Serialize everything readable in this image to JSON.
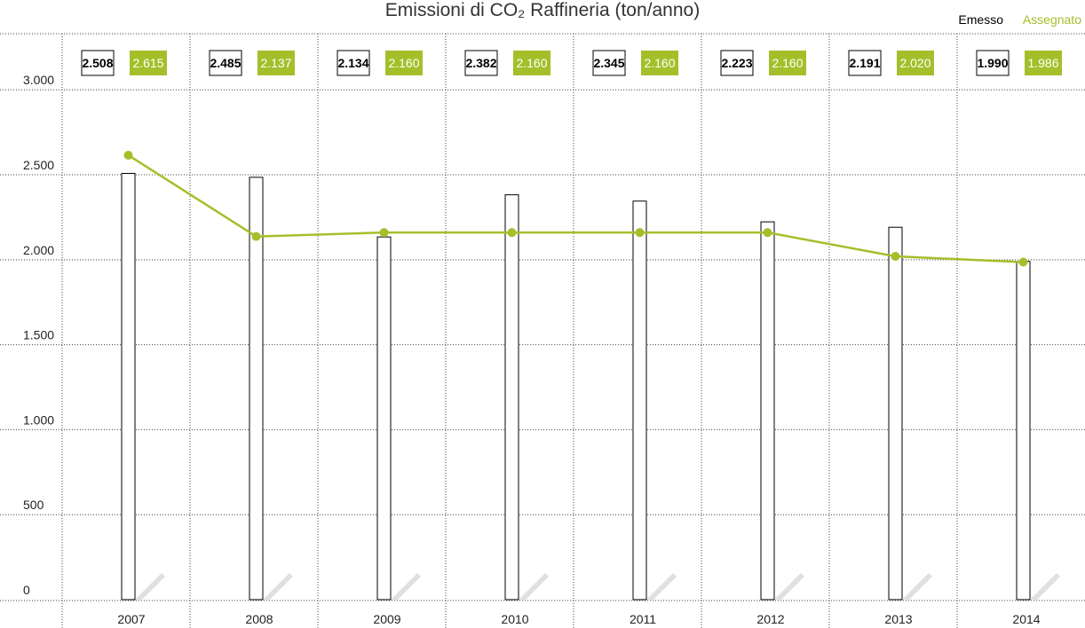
{
  "chart_data": {
    "type": "bar-line",
    "title": "Emissioni di CO₂ Raffineria (ton/anno)",
    "categories": [
      "2007",
      "2008",
      "2009",
      "2010",
      "2011",
      "2012",
      "2013",
      "2014"
    ],
    "series": [
      {
        "name": "Emesso",
        "color": "#000000",
        "type": "bar",
        "values": [
          2508,
          2485,
          2134,
          2382,
          2345,
          2223,
          2191,
          1990
        ],
        "value_labels": [
          "2.508",
          "2.485",
          "2.134",
          "2.382",
          "2.345",
          "2.223",
          "2.191",
          "1.990"
        ]
      },
      {
        "name": "Assegnato",
        "color": "#a4bf2a",
        "type": "line",
        "values": [
          2615,
          2137,
          2160,
          2160,
          2160,
          2160,
          2020,
          1986
        ],
        "value_labels": [
          "2.615",
          "2.137",
          "2.160",
          "2.160",
          "2.160",
          "2.160",
          "2.020",
          "1.986"
        ]
      }
    ],
    "ylim": [
      0,
      3330
    ],
    "yticks": [
      0,
      500,
      {
        "value": 1000,
        "label": "1.000"
      },
      {
        "value": 1500,
        "label": "1.500"
      },
      {
        "value": 2000,
        "label": "2.000"
      },
      {
        "value": 2500,
        "label": "2.500"
      },
      {
        "value": 3000,
        "label": "3.000"
      }
    ],
    "grid": true,
    "legend": "top-right"
  }
}
